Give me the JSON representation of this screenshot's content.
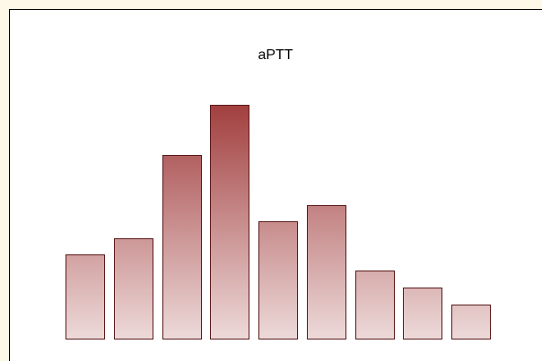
{
  "chart_data": {
    "type": "bar",
    "title": "aPTT",
    "values": [
      94,
      112,
      205,
      261,
      131,
      149,
      76,
      57,
      38
    ],
    "ylim": [
      0,
      300
    ],
    "gradient": [
      "#a23f3f",
      "#edd9d9"
    ],
    "edge_color": "#5a1a1a"
  }
}
